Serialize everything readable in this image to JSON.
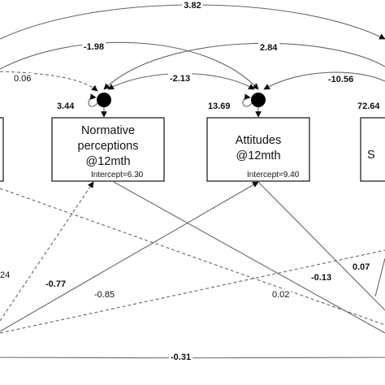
{
  "diagram": {
    "nodes": [
      {
        "id": "normative",
        "lines": [
          "Normative",
          "perceptions",
          "@12mth"
        ],
        "intercept": "Intercept=6.30",
        "variance": "3.44"
      },
      {
        "id": "attitudes",
        "lines": [
          "Attitudes",
          "@12mth"
        ],
        "intercept": "Intercept=9.40",
        "variance": "13.69"
      },
      {
        "id": "right",
        "lines": [
          "S"
        ],
        "variance": "72.64"
      }
    ],
    "coefficients": {
      "top_arc": "3.82",
      "left_to_attitudes": "-1.98",
      "normative_to_right": "2.84",
      "dashed_left": "0.06",
      "normative_attitudes": "-2.13",
      "attitudes_right": "-10.56",
      "left_lower": "24",
      "cross_a": "-0.77",
      "cross_b": "-0.85",
      "cross_c": "0.02",
      "cross_d": "-0.13",
      "cross_e": "0.07",
      "bottom_arc": "-0.31"
    }
  }
}
